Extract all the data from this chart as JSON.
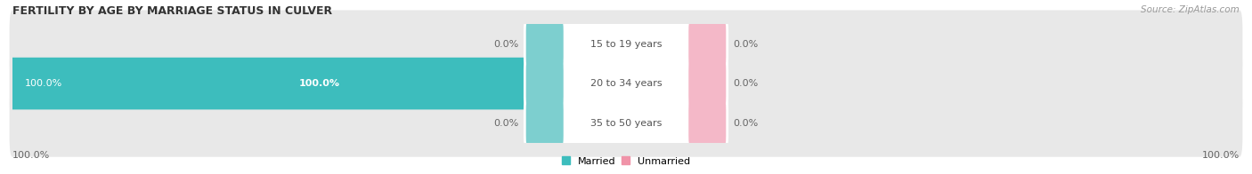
{
  "title": "FERTILITY BY AGE BY MARRIAGE STATUS IN CULVER",
  "source_text": "Source: ZipAtlas.com",
  "categories": [
    "15 to 19 years",
    "20 to 34 years",
    "35 to 50 years"
  ],
  "married_values": [
    0.0,
    100.0,
    0.0
  ],
  "unmarried_values": [
    0.0,
    0.0,
    0.0
  ],
  "married_color": "#3dbdbd",
  "unmarried_color": "#f093a8",
  "bar_bg_color": "#e8e8e8",
  "center_box_married_color": "#7dcfcf",
  "center_box_unmarried_color": "#f4b8c8",
  "title_fontsize": 9,
  "label_fontsize": 8,
  "tick_fontsize": 8,
  "source_fontsize": 7.5,
  "legend_fontsize": 8,
  "left_label_100": "100.0%",
  "right_label_100": "100.0%",
  "figsize": [
    14.06,
    1.96
  ],
  "dpi": 100
}
